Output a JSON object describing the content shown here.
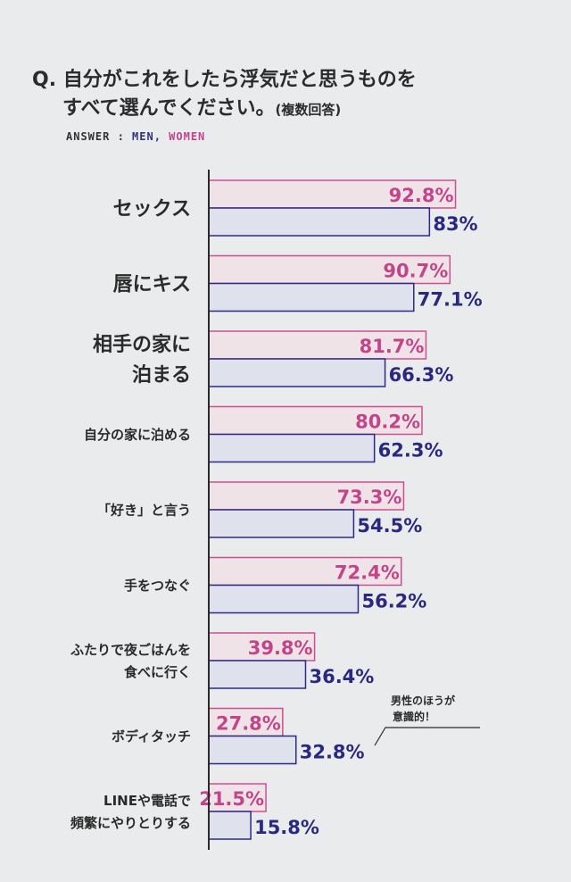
{
  "title": {
    "q_prefix": "Q.",
    "line1": "自分がこれをしたら浮気だと思うものを",
    "line2": "すべて選んでください。",
    "line2_suffix": "(複数回答)"
  },
  "answer": {
    "prefix": "ANSWER : ",
    "men": "MEN,",
    "women": " WOMEN"
  },
  "annotation": {
    "line1": "男性のほうが",
    "line2": "意識的！"
  },
  "colors": {
    "women_border": "#cc4f91",
    "women_fill": "#efe3e8",
    "men_border": "#2c2a86",
    "men_fill": "#dfe1ec",
    "women_text": "#c2458a",
    "men_text": "#2a2880",
    "axis": "#2a2a2a"
  },
  "chart_data": {
    "type": "bar",
    "orientation": "horizontal",
    "xlim": [
      0,
      100
    ],
    "categories": [
      "セックス",
      "唇にキス",
      "相手の家に泊まる",
      "自分の家に泊める",
      "「好き」と言う",
      "手をつなぐ",
      "ふたりで夜ごはんを食べに行く",
      "ボディタッチ",
      "LINEや電話で頻繁にやりとりする"
    ],
    "category_lines": [
      [
        "セックス"
      ],
      [
        "唇にキス"
      ],
      [
        "相手の家に",
        "泊まる"
      ],
      [
        "自分の家に泊める"
      ],
      [
        "「好き」と言う"
      ],
      [
        "手をつなぐ"
      ],
      [
        "ふたりで夜ごはんを",
        "食べに行く"
      ],
      [
        "ボディタッチ"
      ],
      [
        "LINEや電話で",
        "頻繁にやりとりする"
      ]
    ],
    "series": [
      {
        "name": "WOMEN",
        "values": [
          92.8,
          90.7,
          81.7,
          80.2,
          73.3,
          72.4,
          39.8,
          27.8,
          21.5
        ],
        "labels": [
          "92.8%",
          "90.7%",
          "81.7%",
          "80.2%",
          "73.3%",
          "72.4%",
          "39.8%",
          "27.8%",
          "21.5%"
        ]
      },
      {
        "name": "MEN",
        "values": [
          83,
          77.1,
          66.3,
          62.3,
          54.5,
          56.2,
          36.4,
          32.8,
          15.8
        ],
        "labels": [
          "83%",
          "77.1%",
          "66.3%",
          "62.3%",
          "54.5%",
          "56.2%",
          "36.4%",
          "32.8%",
          "15.8%"
        ]
      }
    ]
  }
}
